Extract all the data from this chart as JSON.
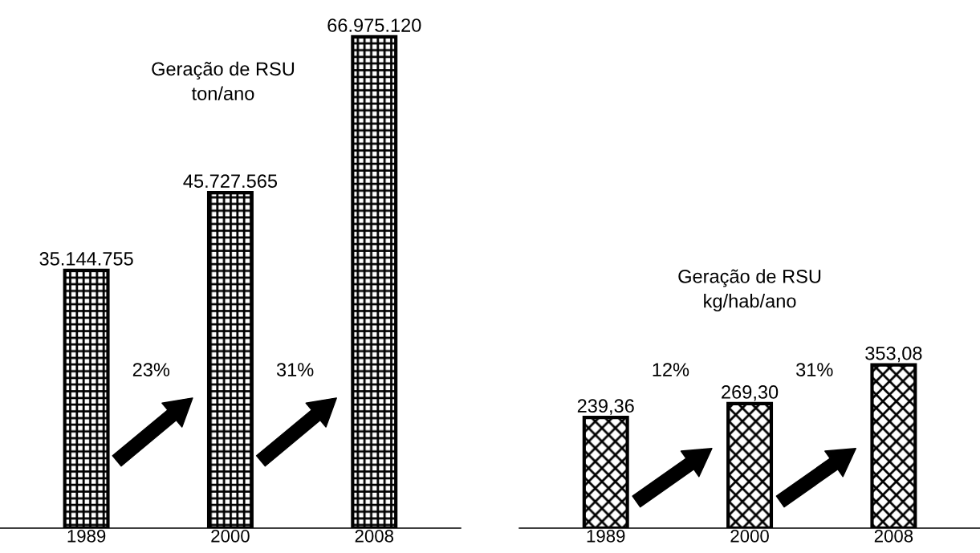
{
  "chart_data": [
    {
      "type": "bar",
      "title": "Geração de RSU",
      "subtitle": "ton/ano",
      "categories": [
        "1989",
        "2000",
        "2008"
      ],
      "values": [
        35144755,
        45727565,
        66975120
      ],
      "value_labels": [
        "35.144.755",
        "45.727.565",
        "66.975.120"
      ],
      "color": "#000000",
      "annotations": [
        "23%",
        "31%"
      ]
    },
    {
      "type": "bar",
      "title": "Geração de RSU",
      "subtitle": "kg/hab/ano",
      "categories": [
        "1989",
        "2000",
        "2008"
      ],
      "values": [
        239.36,
        269.3,
        353.08
      ],
      "value_labels": [
        "239,36",
        "269,30",
        "353,08"
      ],
      "color": "#000000",
      "annotations": [
        "12%",
        "31%"
      ]
    }
  ]
}
